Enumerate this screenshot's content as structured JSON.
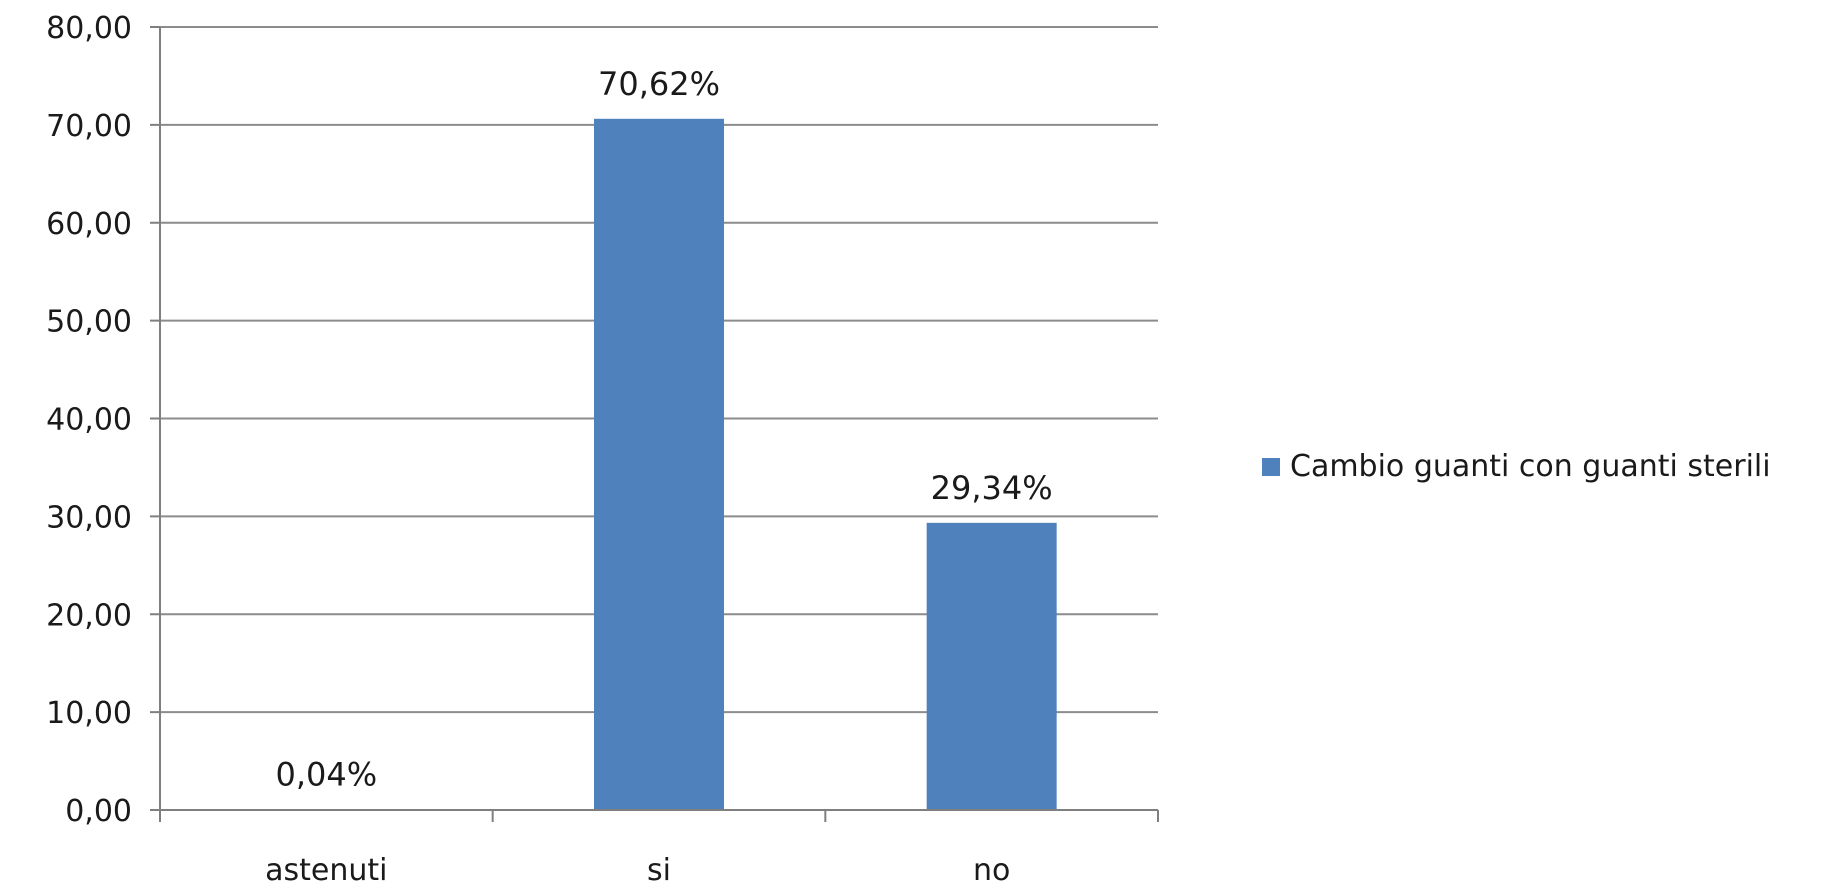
{
  "chart_data": {
    "type": "bar",
    "title": "",
    "xlabel": "",
    "ylabel": "",
    "categories": [
      "astenuti",
      "si",
      "no"
    ],
    "series": [
      {
        "name": "Cambio guanti con guanti sterili",
        "values": [
          0.04,
          70.62,
          29.34
        ],
        "labels": [
          "0,04%",
          "70,62%",
          "29,34%"
        ]
      }
    ],
    "ylim": [
      0,
      80
    ],
    "y_ticks": [
      0,
      10,
      20,
      30,
      40,
      50,
      60,
      70,
      80
    ],
    "y_tick_labels": [
      "0,00",
      "10,00",
      "20,00",
      "30,00",
      "40,00",
      "50,00",
      "60,00",
      "70,00",
      "80,00"
    ],
    "grid": true,
    "legend_position": "right",
    "colors": {
      "bar": "#4f81bd",
      "grid": "#8c8c8c",
      "axis": "#7f7f7f"
    }
  }
}
